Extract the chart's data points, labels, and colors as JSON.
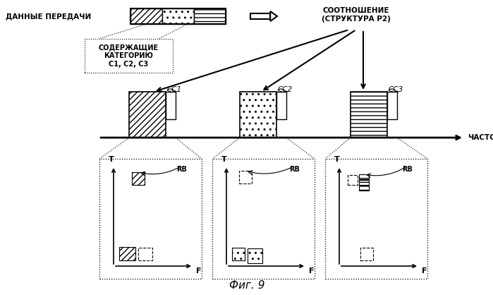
{
  "title": "Фиг. 9",
  "bg_color": "#ffffff",
  "label_top_left": "ДАННЫЕ ПЕРЕДАЧИ",
  "label_box": "СОДЕРЖАЩИЕ\nКАТЕГОРИЮ\nС1, С2, С3",
  "label_ratio": "СООТНОШЕНИЕ\n(СТРУКТУРА Р2)",
  "label_freq": "ЧАСТОТА",
  "cc_labels": [
    "СС1",
    "СС2",
    "СС3"
  ]
}
